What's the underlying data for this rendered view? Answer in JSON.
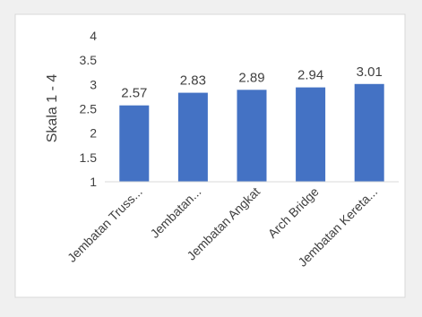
{
  "chart_data": {
    "type": "bar",
    "categories": [
      "Jembatan Truss...",
      "Jembatan...",
      "Jembatan Angkat",
      "Arch Bridge",
      "Jembatan Kereta..."
    ],
    "values": [
      2.57,
      2.83,
      2.89,
      2.94,
      3.01
    ],
    "value_labels": [
      "2.57",
      "2.83",
      "2.89",
      "2.94",
      "3.01"
    ],
    "ylabel": "Skala 1 - 4",
    "ylim": [
      1,
      4
    ],
    "yticks": [
      "1",
      "1.5",
      "2",
      "2.5",
      "3",
      "3.5",
      "4"
    ],
    "grid": false,
    "colors": {
      "bar": "#4472c4",
      "text": "#404040",
      "axis": "#d9d9d9",
      "frame": "#d9d9d9",
      "background": "#ffffff"
    }
  }
}
